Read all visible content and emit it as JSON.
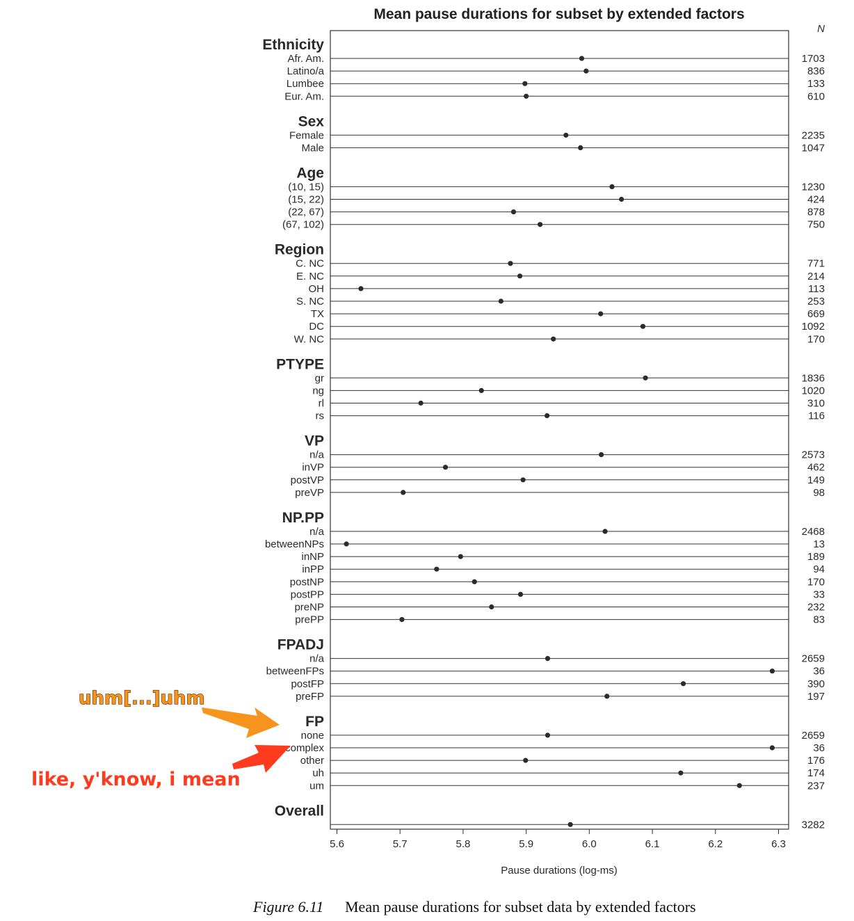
{
  "chart_data": {
    "type": "dot",
    "title": "Mean pause durations for subset by extended factors",
    "xlabel": "Pause durations (log-ms)",
    "n_header": "N",
    "xlim": [
      5.59,
      6.32
    ],
    "xticks": [
      5.6,
      5.7,
      5.8,
      5.9,
      6.0,
      6.1,
      6.2,
      6.3
    ],
    "xtick_labels": [
      "5.6",
      "5.7",
      "5.8",
      "5.9",
      "6.0",
      "6.1",
      "6.2",
      "6.3"
    ],
    "groups": [
      {
        "name": "Ethnicity",
        "levels": [
          {
            "label": "Afr. Am.",
            "value": 5.988,
            "n": "1703"
          },
          {
            "label": "Latino/a",
            "value": 5.995,
            "n": "836"
          },
          {
            "label": "Lumbee",
            "value": 5.898,
            "n": "133"
          },
          {
            "label": "Eur. Am.",
            "value": 5.9,
            "n": "610"
          }
        ]
      },
      {
        "name": "Sex",
        "levels": [
          {
            "label": "Female",
            "value": 5.963,
            "n": "2235"
          },
          {
            "label": "Male",
            "value": 5.986,
            "n": "1047"
          }
        ]
      },
      {
        "name": "Age",
        "levels": [
          {
            "label": "(10, 15)",
            "value": 6.036,
            "n": "1230"
          },
          {
            "label": "(15, 22)",
            "value": 6.051,
            "n": "424"
          },
          {
            "label": "(22, 67)",
            "value": 5.88,
            "n": "878"
          },
          {
            "label": "(67, 102)",
            "value": 5.922,
            "n": "750"
          }
        ]
      },
      {
        "name": "Region",
        "levels": [
          {
            "label": "C. NC",
            "value": 5.875,
            "n": "771"
          },
          {
            "label": "E. NC",
            "value": 5.89,
            "n": "214"
          },
          {
            "label": "OH",
            "value": 5.638,
            "n": "113"
          },
          {
            "label": "S. NC",
            "value": 5.86,
            "n": "253"
          },
          {
            "label": "TX",
            "value": 6.018,
            "n": "669"
          },
          {
            "label": "DC",
            "value": 6.085,
            "n": "1092"
          },
          {
            "label": "W. NC",
            "value": 5.943,
            "n": "170"
          }
        ]
      },
      {
        "name": "PTYPE",
        "levels": [
          {
            "label": "gr",
            "value": 6.089,
            "n": "1836"
          },
          {
            "label": "ng",
            "value": 5.829,
            "n": "1020"
          },
          {
            "label": "rl",
            "value": 5.733,
            "n": "310"
          },
          {
            "label": "rs",
            "value": 5.933,
            "n": "116"
          }
        ]
      },
      {
        "name": "VP",
        "levels": [
          {
            "label": "n/a",
            "value": 6.019,
            "n": "2573"
          },
          {
            "label": "inVP",
            "value": 5.772,
            "n": "462"
          },
          {
            "label": "postVP",
            "value": 5.895,
            "n": "149"
          },
          {
            "label": "preVP",
            "value": 5.705,
            "n": "98"
          }
        ]
      },
      {
        "name": "NP.PP",
        "levels": [
          {
            "label": "n/a",
            "value": 6.025,
            "n": "2468"
          },
          {
            "label": "betweenNPs",
            "value": 5.615,
            "n": "13"
          },
          {
            "label": "inNP",
            "value": 5.796,
            "n": "189"
          },
          {
            "label": "inPP",
            "value": 5.758,
            "n": "94"
          },
          {
            "label": "postNP",
            "value": 5.818,
            "n": "170"
          },
          {
            "label": "postPP",
            "value": 5.891,
            "n": "33"
          },
          {
            "label": "preNP",
            "value": 5.845,
            "n": "232"
          },
          {
            "label": "prePP",
            "value": 5.703,
            "n": "83"
          }
        ]
      },
      {
        "name": "FPADJ",
        "levels": [
          {
            "label": "n/a",
            "value": 5.934,
            "n": "2659"
          },
          {
            "label": "betweenFPs",
            "value": 6.29,
            "n": "36"
          },
          {
            "label": "postFP",
            "value": 6.149,
            "n": "390"
          },
          {
            "label": "preFP",
            "value": 6.028,
            "n": "197"
          }
        ]
      },
      {
        "name": "FP",
        "levels": [
          {
            "label": "none",
            "value": 5.934,
            "n": "2659"
          },
          {
            "label": "complex",
            "value": 6.29,
            "n": "36"
          },
          {
            "label": "other",
            "value": 5.899,
            "n": "176"
          },
          {
            "label": "uh",
            "value": 6.145,
            "n": "174"
          },
          {
            "label": "um",
            "value": 6.238,
            "n": "237"
          }
        ]
      },
      {
        "name": "Overall",
        "levels": [
          {
            "label": "",
            "value": 5.97,
            "n": "3282"
          }
        ]
      }
    ],
    "annotations": [
      {
        "text": "uhm[...]uhm",
        "color": "#f7941d",
        "points_to": "complex"
      },
      {
        "text": "like, y'know, i mean",
        "color": "#ff3b1f",
        "points_to": "other"
      }
    ]
  },
  "caption": {
    "prefix": "Figure 6.11",
    "text": "Mean pause durations for subset data by extended factors"
  },
  "colors": {
    "dot": "#2b2b2b",
    "line": "#333333",
    "orange_arrow": "#f7941d",
    "red_arrow": "#ff3b1f"
  }
}
